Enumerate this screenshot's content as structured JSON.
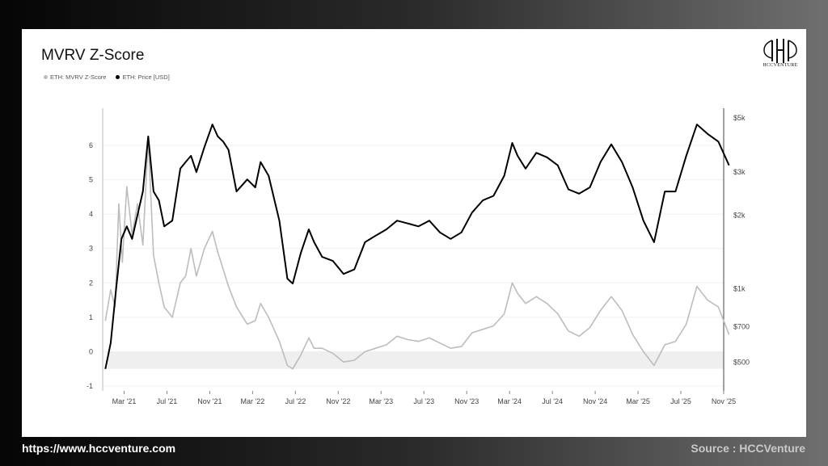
{
  "footer": {
    "url": "https://www.hccventure.com",
    "source": "Source : HCCVenture"
  },
  "logo": {
    "text": "HCCVENTURE"
  },
  "colors": {
    "price": "#000000",
    "zscore": "#bdbdbd",
    "band": "#efefef"
  },
  "chart_data": {
    "type": "line",
    "title": "MVRV Z-Score",
    "legend_position": "top-left",
    "grid": true,
    "x_ticks": [
      "Mar '21",
      "Jul '21",
      "Nov '21",
      "Mar '22",
      "Jul '22",
      "Nov '22",
      "Mar '23",
      "Jul '23",
      "Nov '23",
      "Mar '24",
      "Jul '24",
      "Nov '24",
      "Mar '25",
      "Jul '25",
      "Nov '25"
    ],
    "y_left": {
      "ticks": [
        "6",
        "5",
        "4",
        "3",
        "2",
        "1",
        "0",
        "-1"
      ],
      "range": [
        -1,
        6.8
      ]
    },
    "y_right": {
      "ticks": [
        "$5k",
        "$3k",
        "$2k",
        "$1k",
        "$700",
        "$500"
      ],
      "scale": "log",
      "range": [
        400,
        5000
      ]
    },
    "shaded_band": [
      -0.5,
      0
    ],
    "x_range": [
      "2021-01",
      "2025-11"
    ],
    "series": [
      {
        "name": "ETH: MVRV Z-Score",
        "axis": "left",
        "points": [
          [
            "2021-01",
            0.9
          ],
          [
            "2021-01",
            1.8
          ],
          [
            "2021-02",
            1.3
          ],
          [
            "2021-02",
            4.3
          ],
          [
            "2021-02",
            2.6
          ],
          [
            "2021-03",
            4.8
          ],
          [
            "2021-03",
            3.4
          ],
          [
            "2021-04",
            4.3
          ],
          [
            "2021-04",
            3.1
          ],
          [
            "2021-05",
            6.2
          ],
          [
            "2021-05",
            2.8
          ],
          [
            "2021-06",
            2.0
          ],
          [
            "2021-06",
            1.3
          ],
          [
            "2021-07",
            1.0
          ],
          [
            "2021-08",
            2.0
          ],
          [
            "2021-08",
            2.2
          ],
          [
            "2021-09",
            3.0
          ],
          [
            "2021-09",
            2.2
          ],
          [
            "2021-10",
            3.0
          ],
          [
            "2021-11",
            3.5
          ],
          [
            "2021-11",
            2.9
          ],
          [
            "2021-12",
            2.4
          ],
          [
            "2021-12",
            1.9
          ],
          [
            "2022-01",
            1.3
          ],
          [
            "2022-02",
            0.8
          ],
          [
            "2022-03",
            0.9
          ],
          [
            "2022-03",
            1.4
          ],
          [
            "2022-04",
            1.0
          ],
          [
            "2022-05",
            0.3
          ],
          [
            "2022-06",
            -0.4
          ],
          [
            "2022-06",
            -0.5
          ],
          [
            "2022-07",
            -0.1
          ],
          [
            "2022-08",
            0.4
          ],
          [
            "2022-08",
            0.1
          ],
          [
            "2022-09",
            0.1
          ],
          [
            "2022-10",
            -0.05
          ],
          [
            "2022-11",
            -0.3
          ],
          [
            "2022-12",
            -0.25
          ],
          [
            "2023-01",
            0.0
          ],
          [
            "2023-02",
            0.1
          ],
          [
            "2023-03",
            0.2
          ],
          [
            "2023-04",
            0.45
          ],
          [
            "2023-05",
            0.35
          ],
          [
            "2023-06",
            0.3
          ],
          [
            "2023-07",
            0.4
          ],
          [
            "2023-08",
            0.25
          ],
          [
            "2023-09",
            0.1
          ],
          [
            "2023-10",
            0.15
          ],
          [
            "2023-11",
            0.55
          ],
          [
            "2023-12",
            0.65
          ],
          [
            "2024-01",
            0.75
          ],
          [
            "2024-02",
            1.1
          ],
          [
            "2024-03",
            2.0
          ],
          [
            "2024-03",
            1.7
          ],
          [
            "2024-04",
            1.4
          ],
          [
            "2024-05",
            1.6
          ],
          [
            "2024-06",
            1.4
          ],
          [
            "2024-07",
            1.1
          ],
          [
            "2024-08",
            0.6
          ],
          [
            "2024-09",
            0.45
          ],
          [
            "2024-10",
            0.7
          ],
          [
            "2024-11",
            1.2
          ],
          [
            "2024-12",
            1.6
          ],
          [
            "2025-01",
            1.2
          ],
          [
            "2025-02",
            0.5
          ],
          [
            "2025-03",
            0.0
          ],
          [
            "2025-04",
            -0.4
          ],
          [
            "2025-05",
            0.2
          ],
          [
            "2025-06",
            0.3
          ],
          [
            "2025-07",
            0.8
          ],
          [
            "2025-08",
            1.9
          ],
          [
            "2025-09",
            1.5
          ],
          [
            "2025-10",
            1.3
          ],
          [
            "2025-11",
            0.5
          ]
        ]
      },
      {
        "name": "ETH: Price [USD]",
        "axis": "right",
        "points": [
          [
            "2021-01",
            470
          ],
          [
            "2021-01",
            600
          ],
          [
            "2021-02",
            1000
          ],
          [
            "2021-02",
            1600
          ],
          [
            "2021-03",
            1800
          ],
          [
            "2021-03",
            1600
          ],
          [
            "2021-04",
            2000
          ],
          [
            "2021-04",
            2500
          ],
          [
            "2021-05",
            4200
          ],
          [
            "2021-05",
            2500
          ],
          [
            "2021-06",
            2300
          ],
          [
            "2021-06",
            1800
          ],
          [
            "2021-07",
            1900
          ],
          [
            "2021-08",
            3100
          ],
          [
            "2021-08",
            3300
          ],
          [
            "2021-09",
            3500
          ],
          [
            "2021-09",
            3000
          ],
          [
            "2021-10",
            3800
          ],
          [
            "2021-11",
            4700
          ],
          [
            "2021-11",
            4200
          ],
          [
            "2021-12",
            4000
          ],
          [
            "2021-12",
            3700
          ],
          [
            "2022-01",
            2500
          ],
          [
            "2022-02",
            2800
          ],
          [
            "2022-03",
            2600
          ],
          [
            "2022-03",
            3300
          ],
          [
            "2022-04",
            2900
          ],
          [
            "2022-05",
            1900
          ],
          [
            "2022-06",
            1100
          ],
          [
            "2022-06",
            1050
          ],
          [
            "2022-07",
            1400
          ],
          [
            "2022-08",
            1750
          ],
          [
            "2022-08",
            1550
          ],
          [
            "2022-09",
            1350
          ],
          [
            "2022-10",
            1300
          ],
          [
            "2022-11",
            1150
          ],
          [
            "2022-12",
            1200
          ],
          [
            "2023-01",
            1550
          ],
          [
            "2023-02",
            1650
          ],
          [
            "2023-03",
            1750
          ],
          [
            "2023-04",
            1900
          ],
          [
            "2023-05",
            1850
          ],
          [
            "2023-06",
            1800
          ],
          [
            "2023-07",
            1900
          ],
          [
            "2023-08",
            1700
          ],
          [
            "2023-09",
            1600
          ],
          [
            "2023-10",
            1700
          ],
          [
            "2023-11",
            2050
          ],
          [
            "2023-12",
            2300
          ],
          [
            "2024-01",
            2400
          ],
          [
            "2024-02",
            2900
          ],
          [
            "2024-03",
            3950
          ],
          [
            "2024-03",
            3500
          ],
          [
            "2024-04",
            3100
          ],
          [
            "2024-05",
            3600
          ],
          [
            "2024-06",
            3450
          ],
          [
            "2024-07",
            3200
          ],
          [
            "2024-08",
            2550
          ],
          [
            "2024-09",
            2450
          ],
          [
            "2024-10",
            2600
          ],
          [
            "2024-11",
            3300
          ],
          [
            "2024-12",
            3900
          ],
          [
            "2025-01",
            3300
          ],
          [
            "2025-02",
            2600
          ],
          [
            "2025-03",
            1900
          ],
          [
            "2025-04",
            1550
          ],
          [
            "2025-05",
            2500
          ],
          [
            "2025-06",
            2500
          ],
          [
            "2025-07",
            3500
          ],
          [
            "2025-08",
            4700
          ],
          [
            "2025-09",
            4300
          ],
          [
            "2025-10",
            4000
          ],
          [
            "2025-11",
            3200
          ]
        ]
      }
    ]
  }
}
